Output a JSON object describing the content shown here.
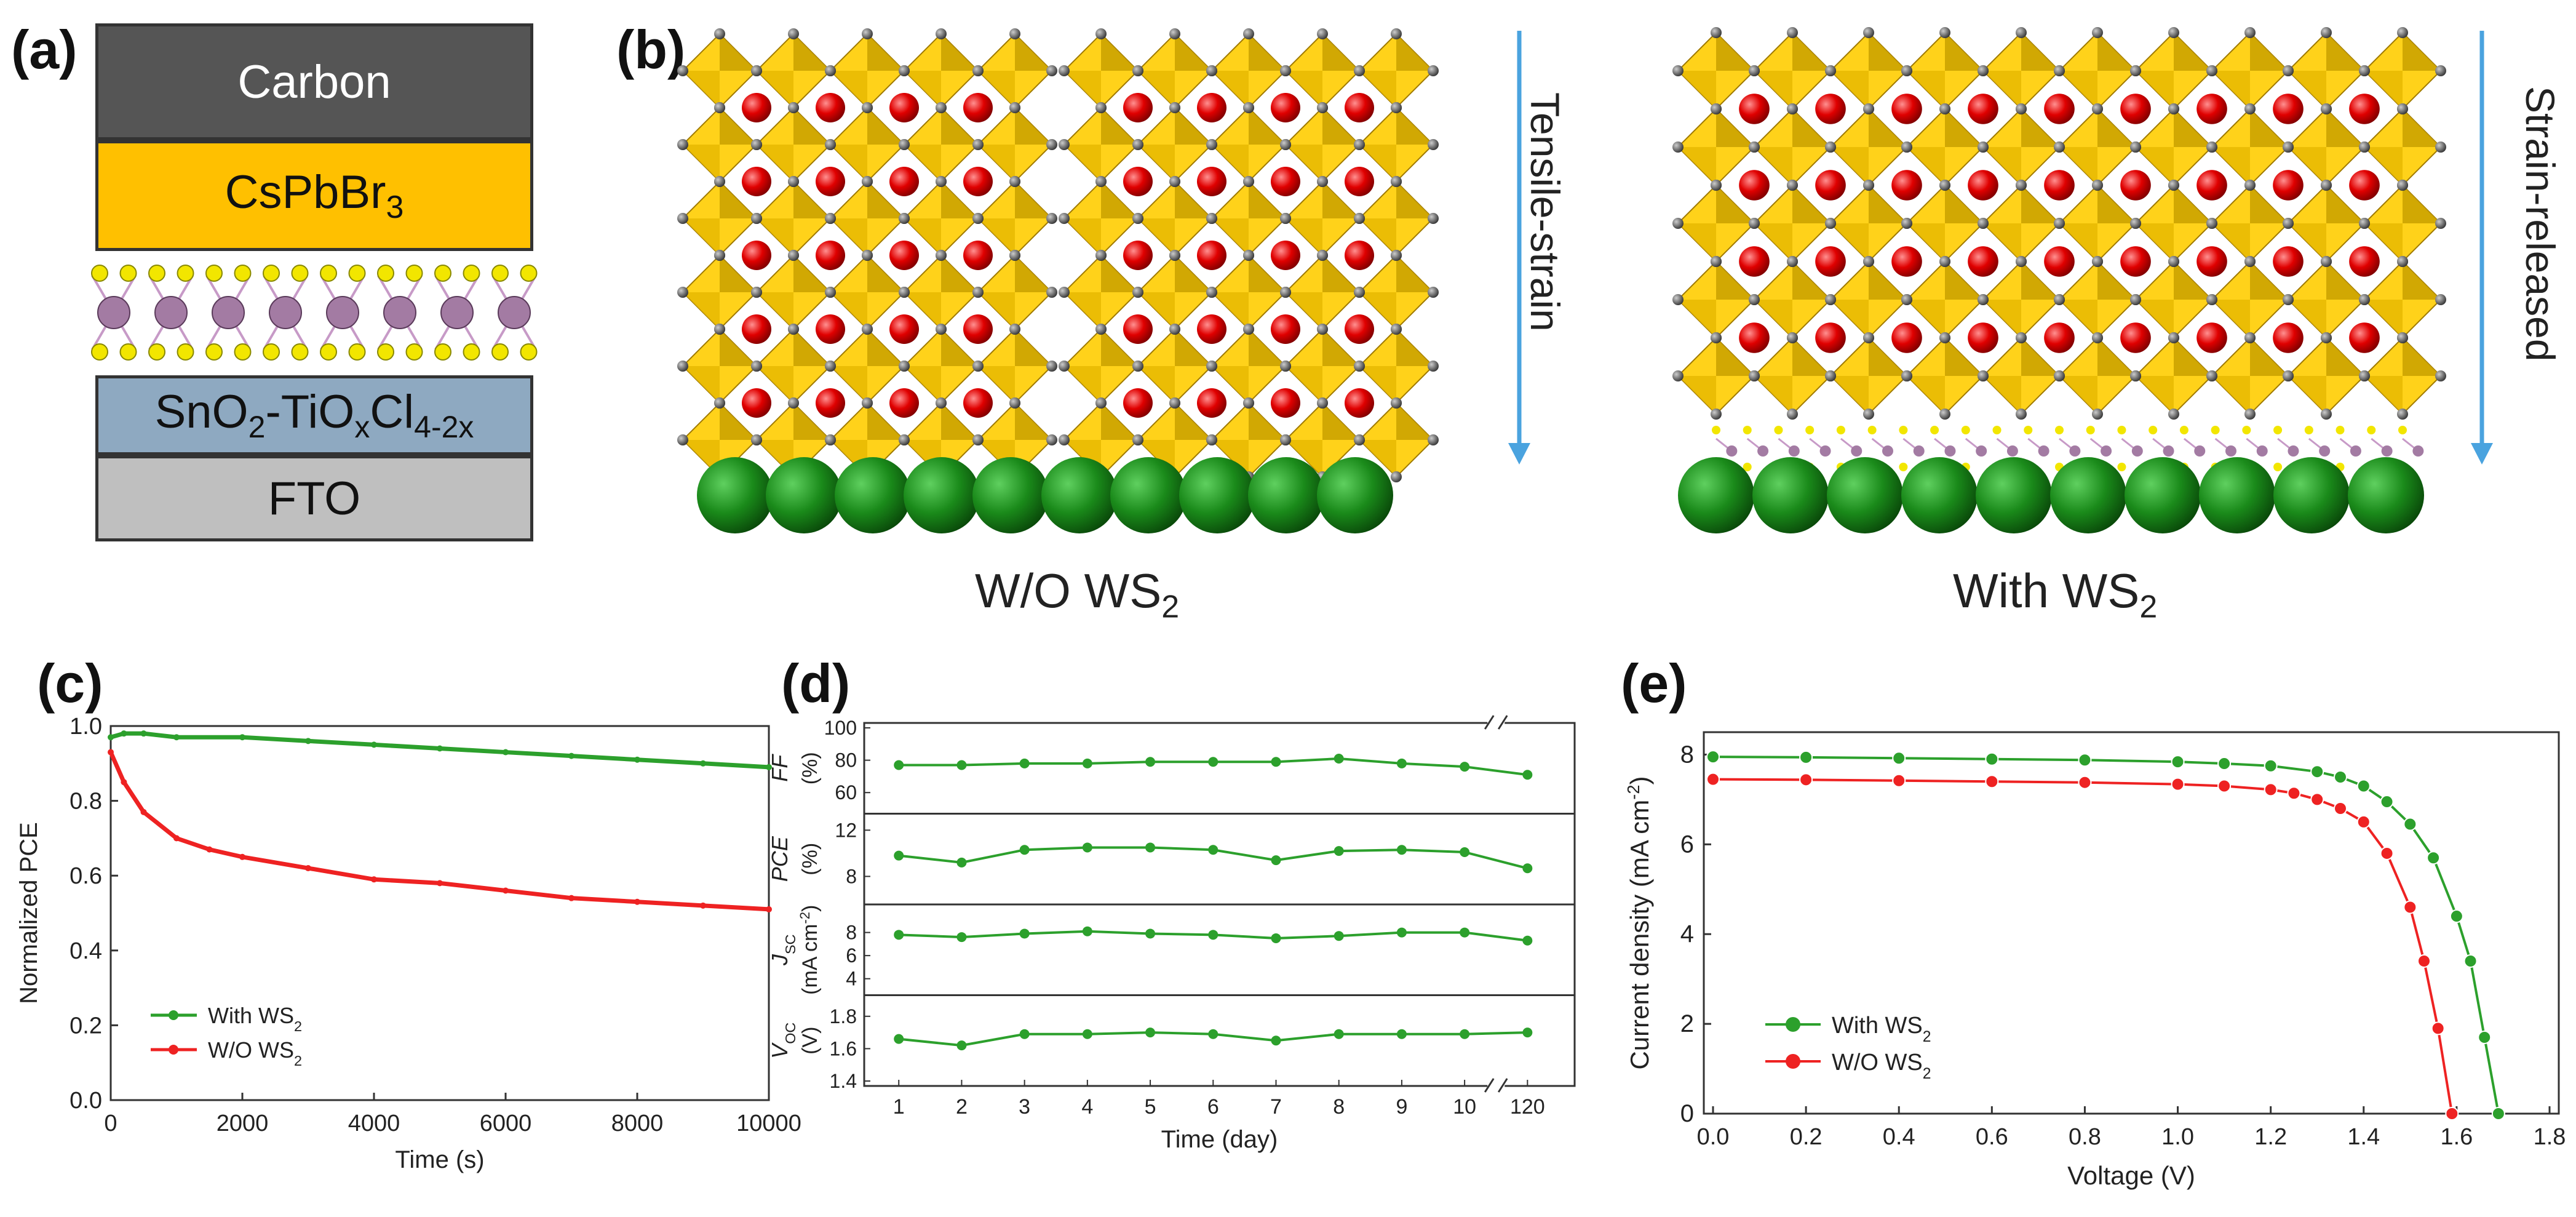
{
  "panel_labels": {
    "a": "(a)",
    "b": "(b)",
    "c": "(c)",
    "d": "(d)",
    "e": "(e)"
  },
  "panel_a": {
    "layers": {
      "carbon": "Carbon",
      "perovskite_base": "CsPbBr",
      "perovskite_sub": "3",
      "etl_1": "SnO",
      "etl_2": "2",
      "etl_3": "-TiO",
      "etl_4": "x",
      "etl_5": "Cl",
      "etl_6": "4-2x",
      "fto": "FTO"
    },
    "colors": {
      "carbon": "#555555",
      "perovskite": "#ffc000",
      "etl": "#8ea9c1",
      "fto": "#bfbfbf"
    }
  },
  "panel_b": {
    "arrow_left": "Tensile-strain",
    "arrow_right": "Strain-released",
    "caption_left": "W/O WS",
    "caption_left_sub": "2",
    "caption_right": "With WS",
    "caption_right_sub": "2"
  },
  "chart_data": [
    {
      "id": "c",
      "type": "line",
      "xlabel": "Time (s)",
      "ylabel": "Normalized PCE",
      "xlim": [
        0,
        10000
      ],
      "ylim": [
        0.0,
        1.0
      ],
      "xticks": [
        "0",
        "2000",
        "4000",
        "6000",
        "8000",
        "10000"
      ],
      "yticks": [
        "0.0",
        "0.2",
        "0.4",
        "0.6",
        "0.8",
        "1.0"
      ],
      "legend_location": "lower-left",
      "series": [
        {
          "name": "With WS",
          "name_sub": "2",
          "color": "#2ca02c",
          "x": [
            0,
            200,
            500,
            1000,
            2000,
            3000,
            4000,
            5000,
            6000,
            7000,
            8000,
            9000,
            10000
          ],
          "y": [
            0.97,
            0.98,
            0.98,
            0.97,
            0.97,
            0.96,
            0.95,
            0.94,
            0.93,
            0.92,
            0.91,
            0.9,
            0.89
          ]
        },
        {
          "name": "W/O WS",
          "name_sub": "2",
          "color": "#ee2222",
          "x": [
            0,
            200,
            500,
            1000,
            1500,
            2000,
            3000,
            4000,
            5000,
            6000,
            7000,
            8000,
            9000,
            10000
          ],
          "y": [
            0.93,
            0.85,
            0.77,
            0.7,
            0.67,
            0.65,
            0.62,
            0.59,
            0.58,
            0.56,
            0.54,
            0.53,
            0.52,
            0.51
          ]
        }
      ]
    },
    {
      "id": "d",
      "type": "line",
      "xlabel": "Time (day)",
      "categories": [
        "1",
        "2",
        "3",
        "4",
        "5",
        "6",
        "7",
        "8",
        "9",
        "10",
        "120"
      ],
      "color": "#2ca02c",
      "subplots": [
        {
          "label1": "FF",
          "label2": "(%)",
          "ylim": [
            50,
            100
          ],
          "yticks": [
            "60",
            "80",
            "100"
          ],
          "values": [
            77,
            77,
            78,
            78,
            79,
            79,
            79,
            81,
            78,
            76,
            71
          ]
        },
        {
          "label1": "PCE",
          "label2": "(%)",
          "ylim": [
            6,
            13
          ],
          "yticks": [
            "8",
            "12"
          ],
          "values": [
            9.8,
            9.2,
            10.3,
            10.5,
            10.5,
            10.3,
            9.4,
            10.2,
            10.3,
            10.1,
            8.7
          ]
        },
        {
          "label1": "J",
          "label1_sub": "SC",
          "label2": "(mA cm",
          "label2_sup": "-2",
          "label2_end": ")",
          "ylim": [
            3,
            10
          ],
          "yticks": [
            "4",
            "6",
            "8"
          ],
          "values": [
            7.8,
            7.6,
            7.9,
            8.1,
            7.9,
            7.8,
            7.5,
            7.7,
            8.0,
            8.0,
            7.3
          ]
        },
        {
          "label1": "V",
          "label1_sub": "OC",
          "label2": "(V)",
          "ylim": [
            1.4,
            1.9
          ],
          "yticks": [
            "1.4",
            "1.6",
            "1.8"
          ],
          "values": [
            1.66,
            1.62,
            1.69,
            1.69,
            1.7,
            1.69,
            1.65,
            1.69,
            1.69,
            1.69,
            1.7
          ]
        }
      ]
    },
    {
      "id": "e",
      "type": "line",
      "xlabel": "Voltage (V)",
      "ylabel": "Current density (mA cm",
      "ylabel_sup": "-2",
      "ylabel_end": ")",
      "xlim": [
        0.0,
        1.8
      ],
      "ylim": [
        0,
        8.5
      ],
      "xticks": [
        "0.0",
        "0.2",
        "0.4",
        "0.6",
        "0.8",
        "1.0",
        "1.2",
        "1.4",
        "1.6",
        "1.8"
      ],
      "yticks": [
        "0",
        "2",
        "4",
        "6",
        "8"
      ],
      "legend_location": "lower-left",
      "series": [
        {
          "name": "With WS",
          "name_sub": "2",
          "color": "#2ca02c",
          "x": [
            0.0,
            0.2,
            0.4,
            0.6,
            0.8,
            1.0,
            1.1,
            1.2,
            1.3,
            1.35,
            1.4,
            1.45,
            1.5,
            1.55,
            1.6,
            1.63,
            1.66,
            1.69
          ],
          "y": [
            7.95,
            7.94,
            7.92,
            7.9,
            7.88,
            7.84,
            7.8,
            7.75,
            7.62,
            7.5,
            7.3,
            6.95,
            6.45,
            5.7,
            4.4,
            3.4,
            1.7,
            0
          ]
        },
        {
          "name": "W/O WS",
          "name_sub": "2",
          "color": "#ee2222",
          "x": [
            0.0,
            0.2,
            0.4,
            0.6,
            0.8,
            1.0,
            1.1,
            1.2,
            1.25,
            1.3,
            1.35,
            1.4,
            1.45,
            1.5,
            1.53,
            1.56,
            1.59
          ],
          "y": [
            7.45,
            7.44,
            7.42,
            7.4,
            7.38,
            7.34,
            7.3,
            7.22,
            7.14,
            7.0,
            6.8,
            6.5,
            5.8,
            4.6,
            3.4,
            1.9,
            0
          ]
        }
      ]
    }
  ]
}
